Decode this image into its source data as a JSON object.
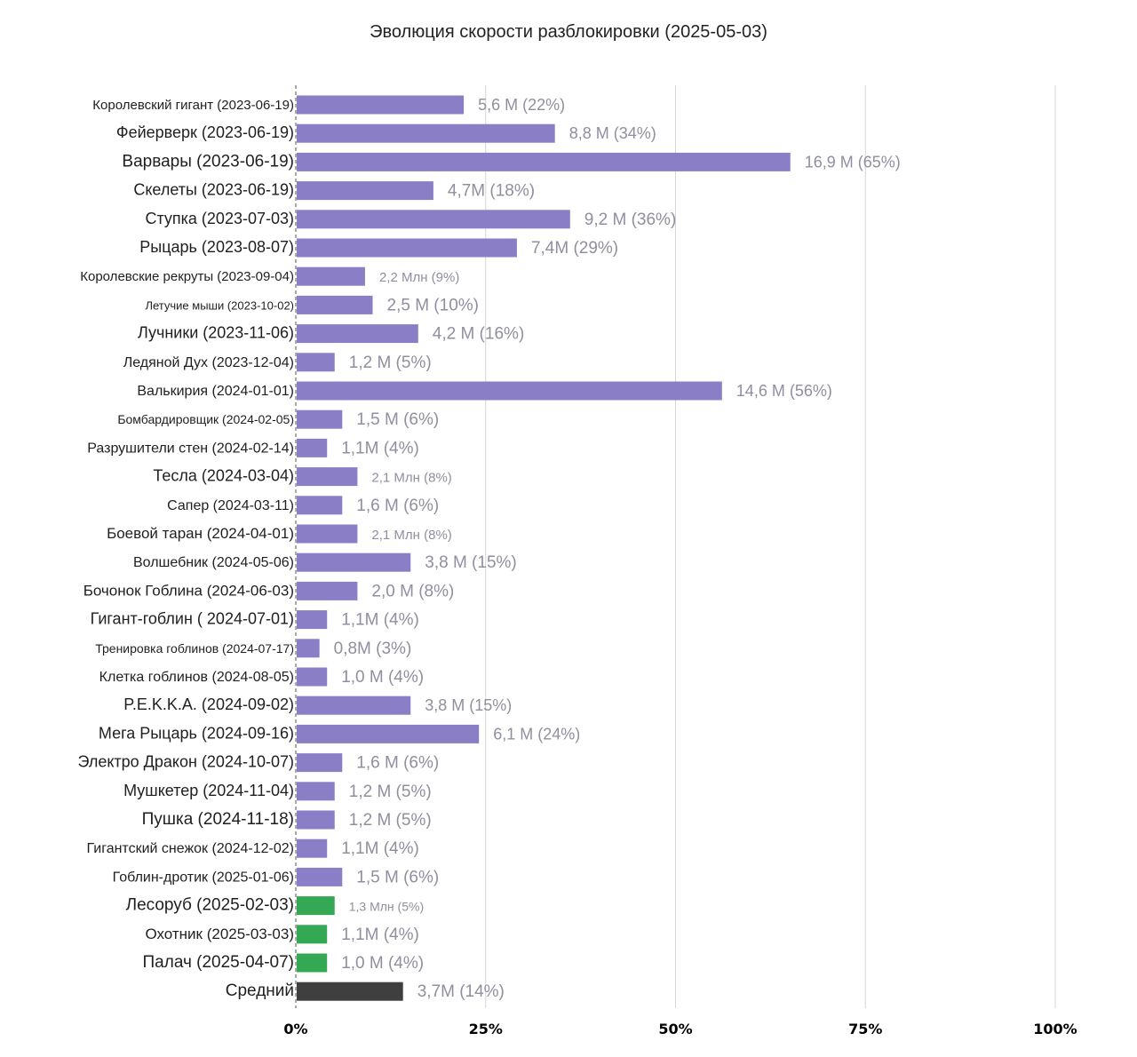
{
  "chart_data": {
    "type": "bar",
    "orientation": "horizontal",
    "title": "Эволюция скорости разблокировки (2025-05-03)",
    "xlabel": "",
    "ylabel": "",
    "xlim": [
      0,
      100
    ],
    "grid": true,
    "x_ticks": [
      "0%",
      "25%",
      "50%",
      "75%",
      "100%"
    ],
    "colors": {
      "standard": "#8a7fc6",
      "recent": "#35a853",
      "average": "#3f3f3f"
    },
    "bars": [
      {
        "label": "Королевский гигант (2023-06-19)",
        "value": 22,
        "value_label": "5,6 М (22%)",
        "group": "standard"
      },
      {
        "label": "Фейерверк (2023-06-19)",
        "value": 34,
        "value_label": "8,8 М (34%)",
        "group": "standard"
      },
      {
        "label": "Варвары (2023-06-19)",
        "value": 65,
        "value_label": "16,9 М (65%)",
        "group": "standard"
      },
      {
        "label": "Скелеты (2023-06-19)",
        "value": 18,
        "value_label": "4,7М (18%)",
        "group": "standard"
      },
      {
        "label": "Ступка (2023-07-03)",
        "value": 36,
        "value_label": "9,2 М (36%)",
        "group": "standard"
      },
      {
        "label": "Рыцарь (2023-08-07)",
        "value": 29,
        "value_label": "7,4М (29%)",
        "group": "standard"
      },
      {
        "label": "Королевские рекруты (2023-09-04)",
        "value": 9,
        "value_label": "2,2 Млн (9%)",
        "group": "standard"
      },
      {
        "label": "Летучие мыши (2023-10-02)",
        "value": 10,
        "value_label": "2,5 М (10%)",
        "group": "standard"
      },
      {
        "label": "Лучники (2023-11-06)",
        "value": 16,
        "value_label": "4,2 М (16%)",
        "group": "standard"
      },
      {
        "label": "Ледяной Дух (2023-12-04)",
        "value": 5,
        "value_label": "1,2 М (5%)",
        "group": "standard"
      },
      {
        "label": "Валькирия (2024-01-01)",
        "value": 56,
        "value_label": "14,6 М (56%)",
        "group": "standard"
      },
      {
        "label": "Бомбардировщик (2024-02-05)",
        "value": 6,
        "value_label": "1,5 М (6%)",
        "group": "standard"
      },
      {
        "label": "Разрушители стен (2024-02-14)",
        "value": 4,
        "value_label": "1,1М (4%)",
        "group": "standard"
      },
      {
        "label": "Тесла (2024-03-04)",
        "value": 8,
        "value_label": "2,1 Млн (8%)",
        "group": "standard"
      },
      {
        "label": "Сапер (2024-03-11)",
        "value": 6,
        "value_label": "1,6 М (6%)",
        "group": "standard"
      },
      {
        "label": "Боевой таран (2024-04-01)",
        "value": 8,
        "value_label": "2,1 Млн (8%)",
        "group": "standard"
      },
      {
        "label": "Волшебник (2024-05-06)",
        "value": 15,
        "value_label": "3,8 М (15%)",
        "group": "standard"
      },
      {
        "label": "Бочонок Гоблина (2024-06-03)",
        "value": 8,
        "value_label": "2,0 М (8%)",
        "group": "standard"
      },
      {
        "label": "Гигант-гоблин ( 2024-07-01)",
        "value": 4,
        "value_label": "1,1М (4%)",
        "group": "standard"
      },
      {
        "label": "Тренировка гоблинов (2024-07-17)",
        "value": 3,
        "value_label": "0,8М (3%)",
        "group": "standard"
      },
      {
        "label": "Клетка гоблинов (2024-08-05)",
        "value": 4,
        "value_label": "1,0 М (4%)",
        "group": "standard"
      },
      {
        "label": "P.E.K.K.A. (2024-09-02)",
        "value": 15,
        "value_label": "3,8 М (15%)",
        "group": "standard"
      },
      {
        "label": "Мега Рыцарь (2024-09-16)",
        "value": 24,
        "value_label": "6,1 М (24%)",
        "group": "standard"
      },
      {
        "label": "Электро Дракон (2024-10-07)",
        "value": 6,
        "value_label": "1,6 М (6%)",
        "group": "standard"
      },
      {
        "label": "Мушкетер (2024-11-04)",
        "value": 5,
        "value_label": "1,2 М (5%)",
        "group": "standard"
      },
      {
        "label": "Пушка (2024-11-18)",
        "value": 5,
        "value_label": "1,2 М (5%)",
        "group": "standard"
      },
      {
        "label": "Гигантский снежок (2024-12-02)",
        "value": 4,
        "value_label": "1,1М (4%)",
        "group": "standard"
      },
      {
        "label": "Гоблин-дротик (2025-01-06)",
        "value": 6,
        "value_label": "1,5 М (6%)",
        "group": "standard"
      },
      {
        "label": "Лесоруб (2025-02-03)",
        "value": 5,
        "value_label": "1,3 Млн (5%)",
        "group": "recent"
      },
      {
        "label": "Охотник (2025-03-03)",
        "value": 4,
        "value_label": "1,1М (4%)",
        "group": "recent"
      },
      {
        "label": "Палач (2025-04-07)",
        "value": 4,
        "value_label": "1,0 М (4%)",
        "group": "recent"
      },
      {
        "label": "Средний",
        "value": 14,
        "value_label": "3,7М (14%)",
        "group": "average"
      }
    ]
  }
}
